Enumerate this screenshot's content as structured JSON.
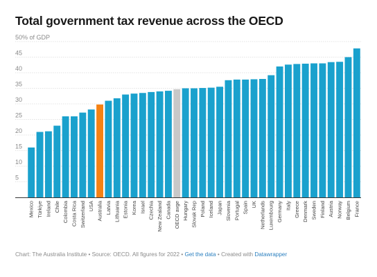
{
  "chart_data": {
    "type": "bar",
    "title": "Total government tax revenue across the OECD",
    "ylabel": "50% of GDP",
    "ylim": [
      0,
      50
    ],
    "yticks": [
      "5",
      "10",
      "15",
      "20",
      "25",
      "30",
      "35",
      "40",
      "45"
    ],
    "grid": true,
    "categories": [
      "Mexico",
      "Türkiye",
      "Ireland",
      "Chile",
      "Colombia",
      "Costa Rica",
      "Switzerland",
      "USA",
      "Australia",
      "Latvia",
      "Lithuania",
      "Estonia",
      "Korea",
      "Israel",
      "Czechia",
      "New Zealand",
      "Canada",
      "OECD avge",
      "Hungary",
      "Slovak Rep",
      "Poland",
      "Iceland",
      "Japan",
      "Slovenia",
      "Portugal",
      "Spain",
      "UK",
      "Netherlands",
      "Luxembourg",
      "Germany",
      "Italy",
      "Greece",
      "Denmark",
      "Sweden",
      "Finland",
      "Austria",
      "Norway",
      "Belgium",
      "France"
    ],
    "values": [
      16.0,
      21.0,
      21.2,
      23.0,
      26.0,
      26.0,
      27.2,
      28.2,
      29.8,
      31.0,
      31.8,
      33.0,
      33.3,
      33.5,
      33.8,
      34.0,
      34.2,
      34.7,
      35.0,
      35.0,
      35.1,
      35.2,
      35.5,
      37.6,
      37.8,
      37.8,
      37.9,
      38.0,
      39.2,
      42.0,
      42.6,
      42.8,
      42.9,
      43.0,
      43.0,
      43.4,
      43.5,
      45.0,
      47.8
    ],
    "highlight": {
      "Australia": "#f58214",
      "OECD avge": "#c8c8c8"
    },
    "bar_color": "#1aa1cd"
  },
  "footer": {
    "credit": "Chart: The Australia Institute",
    "source": "Source: OECD. All figures for 2022",
    "get_data": "Get the data",
    "created_with": "Created with",
    "datawrapper": "Datawrapper",
    "sep": "•"
  },
  "colors": {
    "bar": "#1aa1cd",
    "australia": "#f58214",
    "oecd_average": "#c8c8c8",
    "link": "#2a7fbf"
  }
}
